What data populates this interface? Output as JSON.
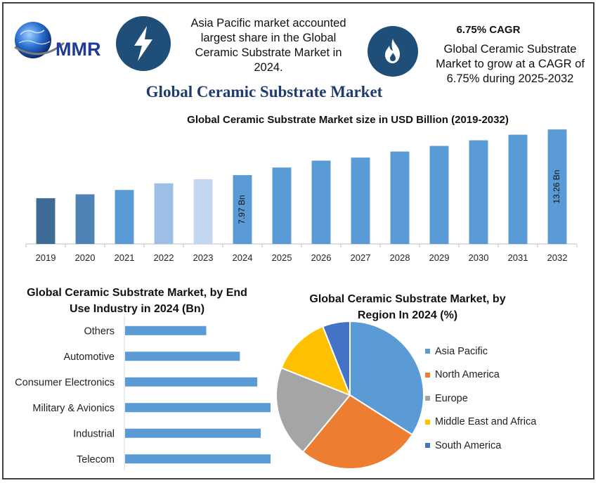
{
  "header": {
    "logo_text": "MMR",
    "icons": [
      "lightning-icon",
      "flame-icon"
    ],
    "headline": "Asia Pacific market accounted largest share in the Global Ceramic Substrate Market in 2024.",
    "cagr_title": "6.75% CAGR",
    "cagr_text": "Global Ceramic Substrate Market to grow at a CAGR of 6.75% during 2025-2032"
  },
  "main_title": "Global Ceramic Substrate Market",
  "colors": {
    "brand_navy": "#1f4e79",
    "title_blue": "#1f3b70",
    "bar_blue": "#5b9bd5"
  },
  "chart_data": [
    {
      "type": "bar",
      "title": "Global Ceramic Substrate Market size in USD Billion (2019-2032)",
      "categories": [
        "2019",
        "2020",
        "2021",
        "2022",
        "2023",
        "2024",
        "2025",
        "2026",
        "2027",
        "2028",
        "2029",
        "2030",
        "2031",
        "2032"
      ],
      "values": [
        5.3,
        5.75,
        6.25,
        7.02,
        7.5,
        7.97,
        8.85,
        9.65,
        10.0,
        10.7,
        11.35,
        12.0,
        12.65,
        13.26
      ],
      "bar_colors": [
        "#3f6c96",
        "#4f83b6",
        "#5b9bd5",
        "#9dbfe6",
        "#c3d7f0",
        "#5b9bd5",
        "#5b9bd5",
        "#5b9bd5",
        "#5b9bd5",
        "#5b9bd5",
        "#5b9bd5",
        "#5b9bd5",
        "#5b9bd5",
        "#5b9bd5"
      ],
      "data_labels": [
        {
          "index": 5,
          "text": "7.97 Bn"
        },
        {
          "index": 13,
          "text": "13.26 Bn"
        }
      ],
      "xlabel": "",
      "ylabel": "",
      "ylim": [
        0,
        14
      ],
      "grid": false
    },
    {
      "type": "bar",
      "orientation": "horizontal",
      "title": "Global Ceramic Substrate Market, by End Use Industry in 2024 (Bn)",
      "categories": [
        "Others",
        "Automotive",
        "Consumer Electronics",
        "Military & Avionics",
        "Industrial",
        "Telecom"
      ],
      "values": [
        0.7,
        0.99,
        1.14,
        1.28,
        1.17,
        1.58
      ],
      "xlim": [
        0,
        2
      ],
      "grid": false
    },
    {
      "type": "pie",
      "title": "Global Ceramic Substrate Market, by Region In 2024 (%)",
      "labels": [
        "Asia Pacific",
        "North America",
        "Europe",
        "Middle East and Africa",
        "South America"
      ],
      "values": [
        34,
        27,
        20,
        13,
        6
      ],
      "colors": [
        "#5b9bd5",
        "#ed7d31",
        "#a5a5a5",
        "#ffc000",
        "#4472c4"
      ],
      "legend": "right"
    }
  ]
}
